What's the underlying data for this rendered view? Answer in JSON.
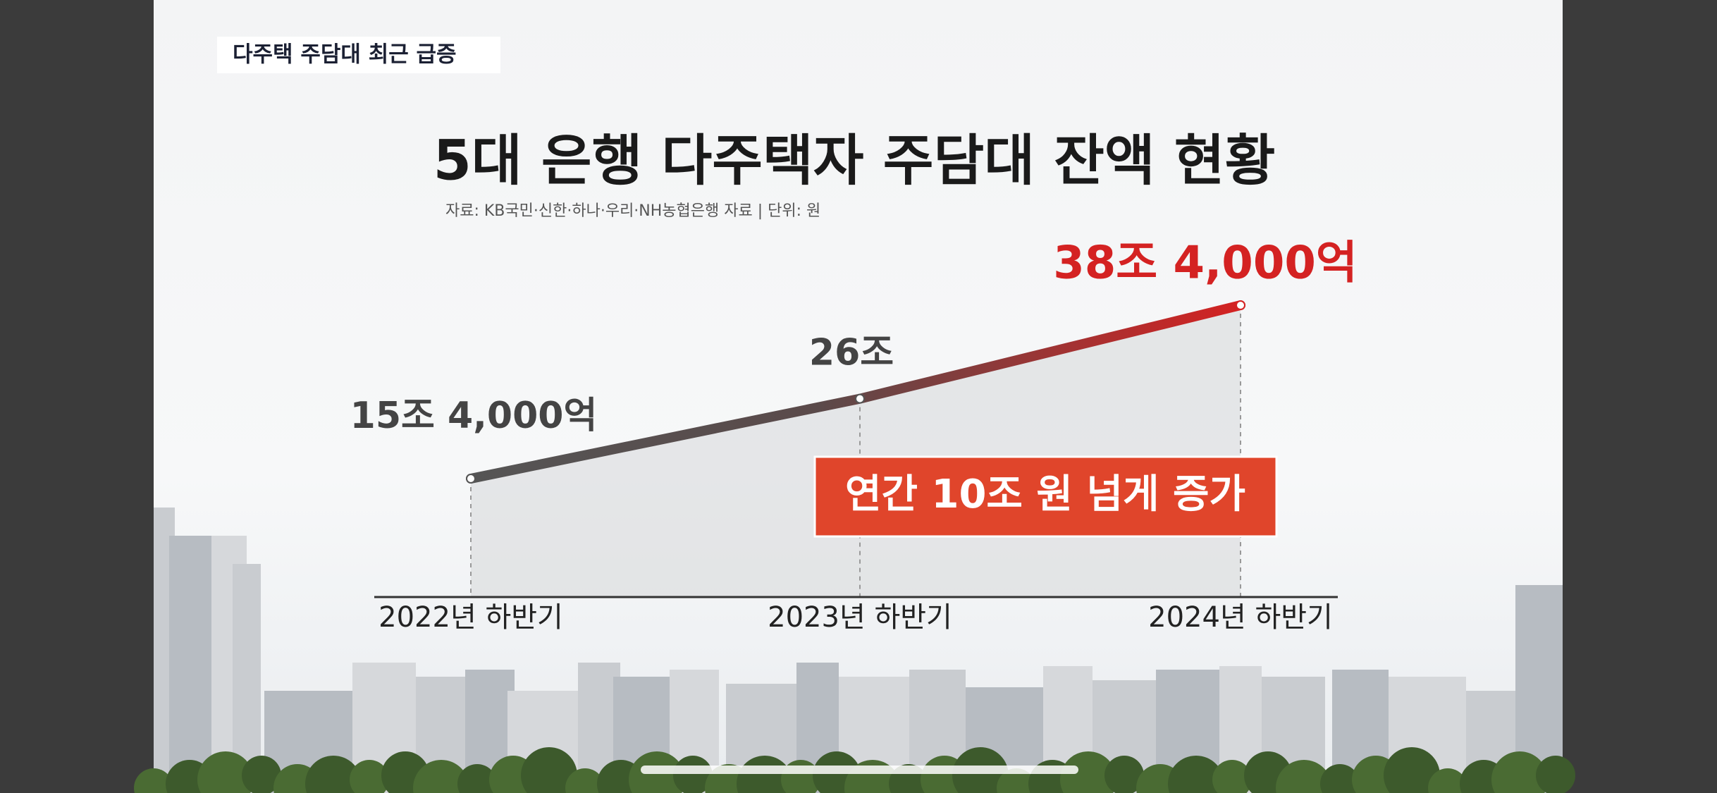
{
  "tag": "다주택 주담대 최근 급증",
  "chart_data": {
    "type": "line",
    "title": "5대 은행 다주택자 주담대 잔액 현황",
    "subtitle": "자료: KB국민·신한·하나·우리·NH농협은행 자료 | 단위: 원",
    "categories": [
      "2022년 하반기",
      "2023년 하반기",
      "2024년 하반기"
    ],
    "values": [
      15.4,
      26,
      38.4
    ],
    "value_labels": [
      "15조 4,000억",
      "26조",
      "38조 4,000억"
    ],
    "color": "#d42222",
    "annotation": "연간 10조 원 넘게 증가"
  }
}
